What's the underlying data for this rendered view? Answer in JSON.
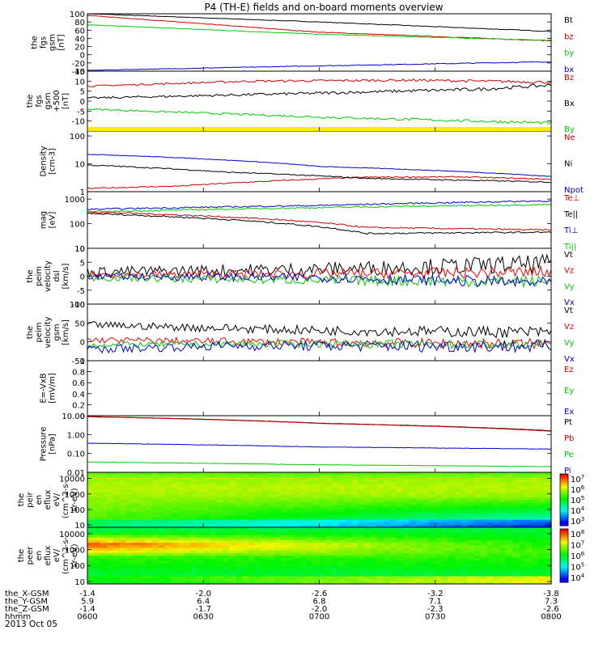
{
  "title": "P4 (TH-E) fields and on-board moments overview",
  "date": "2013 Oct 05",
  "chart_data": [
    {
      "id": "fgs_gsm",
      "type": "line",
      "ylabel": [
        "the",
        "fgs",
        "gsm",
        "[nT]"
      ],
      "ylim": [
        -40,
        100
      ],
      "yticks": [
        100,
        80,
        60,
        40,
        20,
        0,
        -20,
        -40
      ],
      "series": [
        {
          "name": "Bt",
          "color": "#000000",
          "x": [
            0,
            0.5,
            1
          ],
          "y": [
            100,
            80,
            57
          ],
          "noise": 0.5
        },
        {
          "name": "bz",
          "color": "#cc0000",
          "x": [
            0,
            0.5,
            1
          ],
          "y": [
            96,
            55,
            34
          ],
          "noise": 0.5
        },
        {
          "name": "by",
          "color": "#00cc00",
          "x": [
            0,
            0.5,
            1
          ],
          "y": [
            73,
            50,
            35
          ],
          "noise": 0.5
        },
        {
          "name": "bx",
          "color": "#0000cc",
          "x": [
            0,
            0.5,
            1
          ],
          "y": [
            -38,
            -27,
            -17
          ],
          "noise": 0.6
        }
      ]
    },
    {
      "id": "fgs_gse",
      "type": "line",
      "ylabel": [
        "the",
        "fgs",
        "gsm",
        "+500",
        "[nT]"
      ],
      "ylim": [
        -15,
        15
      ],
      "yticks": [
        15,
        10,
        5,
        0,
        -5,
        -10
      ],
      "series": [
        {
          "name": "Bz",
          "color": "#cc0000",
          "x": [
            0,
            0.35,
            0.7,
            1
          ],
          "y": [
            7.5,
            10,
            10.5,
            9.5
          ],
          "noise": 0.4
        },
        {
          "name": "Bx",
          "color": "#000000",
          "x": [
            0,
            0.5,
            0.85,
            1
          ],
          "y": [
            1.5,
            4,
            6,
            8
          ],
          "noise": 0.5
        },
        {
          "name": "By",
          "color": "#00cc00",
          "x": [
            0,
            0.5,
            1
          ],
          "y": [
            -4,
            -8,
            -11
          ],
          "noise": 0.4
        }
      ]
    },
    {
      "id": "density",
      "type": "line",
      "log": true,
      "ylabel": [
        "Density",
        "[cm-3]"
      ],
      "ylim": [
        1,
        150
      ],
      "yticks": [
        100,
        10,
        1
      ],
      "series": [
        {
          "name": "Ne",
          "color": "#cc0000",
          "x": [
            0,
            0.2,
            0.35,
            0.6,
            0.8,
            1
          ],
          "y": [
            1.3,
            1.6,
            2.2,
            3.3,
            3.4,
            2.8
          ],
          "noise": 0.02
        },
        {
          "name": "Ni",
          "color": "#000000",
          "x": [
            0,
            0.3,
            0.6,
            1
          ],
          "y": [
            9,
            5,
            3,
            2.2
          ],
          "noise": 0.02
        },
        {
          "name": "Npot",
          "color": "#0000cc",
          "x": [
            0,
            0.5,
            1
          ],
          "y": [
            22,
            8,
            3.5
          ],
          "noise": 0.01
        }
      ]
    },
    {
      "id": "temperature",
      "type": "line",
      "log": true,
      "ylabel": [
        "mag",
        "[eV]"
      ],
      "ylim": [
        10,
        2000
      ],
      "yticks": [
        1000,
        100,
        10
      ],
      "series": [
        {
          "name": "Te⊥",
          "color": "#cc0000",
          "x": [
            0,
            0.4,
            0.6,
            1
          ],
          "y": [
            300,
            150,
            70,
            55
          ],
          "noise": 0.03
        },
        {
          "name": "Te||",
          "color": "#000000",
          "x": [
            0,
            0.4,
            0.6,
            1
          ],
          "y": [
            260,
            110,
            40,
            45
          ],
          "noise": 0.03
        },
        {
          "name": "Ti⊥",
          "color": "#0000cc",
          "x": [
            0,
            0.5,
            1
          ],
          "y": [
            380,
            550,
            850
          ],
          "noise": 0.03
        },
        {
          "name": "Ti||",
          "color": "#00cc00",
          "x": [
            0,
            0.5,
            1
          ],
          "y": [
            300,
            450,
            600
          ],
          "noise": 0.03
        }
      ]
    },
    {
      "id": "peim_velocity_dsl",
      "type": "line",
      "ylabel": [
        "the",
        "peim",
        "velocity",
        "dsl",
        "[km/s]"
      ],
      "ylim": [
        -10,
        10
      ],
      "yticks": [
        10,
        5,
        0,
        -5,
        -10
      ],
      "series": [
        {
          "name": "Vt",
          "color": "#000000",
          "x": [
            0,
            0.5,
            1
          ],
          "y": [
            1.5,
            2.5,
            4.5
          ],
          "noise": 1.8
        },
        {
          "name": "Vz",
          "color": "#ff0000",
          "x": [
            0,
            0.5,
            1
          ],
          "y": [
            0.5,
            0.8,
            1.5
          ],
          "noise": 1.2
        },
        {
          "name": "Vy",
          "color": "#00cc00",
          "x": [
            0,
            0.5,
            1
          ],
          "y": [
            -0.5,
            -1.5,
            -2
          ],
          "noise": 1.2
        },
        {
          "name": "Vx",
          "color": "#0000cc",
          "x": [
            0,
            0.5,
            1
          ],
          "y": [
            0,
            -0.5,
            -2.5
          ],
          "noise": 1.2
        }
      ]
    },
    {
      "id": "peim_velocity_gsm",
      "type": "line",
      "ylabel": [
        "the",
        "peim",
        "velocity",
        "gsm",
        "[km/s]"
      ],
      "ylim": [
        -50,
        100
      ],
      "yticks": [
        100,
        50,
        0,
        -50
      ],
      "series": [
        {
          "name": "Vt",
          "color": "#000000",
          "x": [
            0,
            0.5,
            1
          ],
          "y": [
            45,
            30,
            25
          ],
          "noise": 9
        },
        {
          "name": "Vz",
          "color": "#ff0000",
          "x": [
            0,
            0.5,
            1
          ],
          "y": [
            5,
            -2,
            -5
          ],
          "noise": 8
        },
        {
          "name": "Vy",
          "color": "#00cc00",
          "x": [
            0,
            0.5,
            1
          ],
          "y": [
            -8,
            -5,
            -8
          ],
          "noise": 7
        },
        {
          "name": "Vx",
          "color": "#0000cc",
          "x": [
            0,
            0.3,
            1
          ],
          "y": [
            -20,
            -10,
            -12
          ],
          "noise": 10
        }
      ]
    },
    {
      "id": "efield",
      "type": "line",
      "ylabel": [
        "E=-VxB",
        "[mV/m]"
      ],
      "ylim": [
        0,
        1
      ],
      "yticks": [
        1.0,
        0.8,
        0.6,
        0.4,
        0.2,
        0.0
      ],
      "series": [
        {
          "name": "Ez",
          "color": "#cc0000",
          "x": [],
          "y": []
        },
        {
          "name": "Ey",
          "color": "#00cc00",
          "x": [],
          "y": []
        },
        {
          "name": "Ex",
          "color": "#0000cc",
          "x": [],
          "y": []
        }
      ]
    },
    {
      "id": "pressure",
      "type": "line",
      "log": true,
      "ylabel": [
        "Pressure",
        "[nPa]"
      ],
      "ylim": [
        0.01,
        10
      ],
      "yticks": [
        "10.00",
        "1.00",
        "0.10",
        "0.01"
      ],
      "series": [
        {
          "name": "Pt",
          "color": "#000000",
          "x": [
            0,
            0.5,
            1
          ],
          "y": [
            9,
            4,
            1.6
          ],
          "noise": 0.005
        },
        {
          "name": "Pb",
          "color": "#cc0000",
          "x": [
            0,
            0.5,
            1
          ],
          "y": [
            8.8,
            3.9,
            1.5
          ],
          "noise": 0.005
        },
        {
          "name": "Pe",
          "color": "#00cc00",
          "x": [
            0,
            0.5,
            1
          ],
          "y": [
            0.035,
            0.025,
            0.02
          ],
          "noise": 0.01
        },
        {
          "name": "Pi",
          "color": "#0000cc",
          "x": [
            0,
            0.5,
            1
          ],
          "y": [
            0.35,
            0.22,
            0.17
          ],
          "noise": 0.01
        }
      ]
    },
    {
      "id": "peir_en_eflux",
      "type": "heatmap",
      "ylabel": [
        "the",
        "peir",
        "en",
        "eflux",
        "eV/",
        "(cm^2-s-",
        "sr-eV)"
      ],
      "ylim": [
        7,
        25000
      ],
      "yticks": [
        "10000",
        "1000",
        "100",
        "10"
      ],
      "colorbar_ticks": [
        "10^7",
        "10^6",
        "10^5",
        "10^4",
        "10^3"
      ]
    },
    {
      "id": "peer_en_eflux",
      "type": "heatmap",
      "ylabel": [
        "the",
        "peer",
        "en",
        "eflux",
        "eV/",
        "(cm^2-s-",
        "sr-eV)"
      ],
      "ylim": [
        7,
        25000
      ],
      "yticks": [
        "10000",
        "1000",
        "100",
        "10"
      ],
      "colorbar_ticks": [
        "10^8",
        "10^7",
        "10^6",
        "10^5",
        "10^4"
      ]
    }
  ],
  "x_axis": {
    "row_labels": [
      "the_X-GSM",
      "the_Y-GSM",
      "the_Z-GSM",
      "hhmm"
    ],
    "columns": [
      {
        "X": "-1.4",
        "Y": "5.9",
        "Z": "-1.4",
        "hhmm": "0600"
      },
      {
        "X": "-2.0",
        "Y": "6.4",
        "Z": "-1.7",
        "hhmm": "0630"
      },
      {
        "X": "-2.6",
        "Y": "6.8",
        "Z": "-2.0",
        "hhmm": "0700"
      },
      {
        "X": "-3.2",
        "Y": "7.1",
        "Z": "-2.3",
        "hhmm": "0730"
      },
      {
        "X": "-3.8",
        "Y": "7.3",
        "Z": "-2.6",
        "hhmm": "0800"
      }
    ]
  }
}
